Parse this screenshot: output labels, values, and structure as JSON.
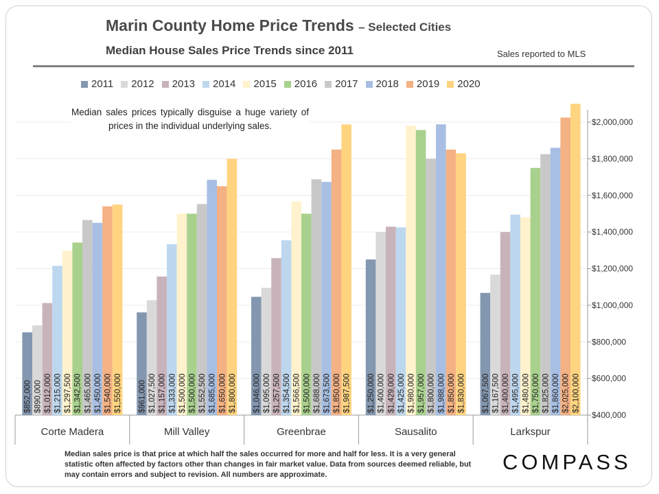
{
  "header": {
    "title": "Marin County Home Price Trends",
    "title_suffix": "– Selected Cities",
    "subtitle": "Median House Sales Price Trends since 2011",
    "source_note": "Sales reported to MLS"
  },
  "annotation": "Median sales prices typically disguise a huge variety of prices in the individual underlying sales.",
  "footnote": "Median sales price is that price at which half the sales occurred for more and half for less. It is a very general statistic often affected by factors other than changes in fair market value. Data from sources deemed reliable, but may contain errors and subject to revision. All numbers are approximate.",
  "logo": "COMPASS",
  "colors": [
    "#8497b0",
    "#d9d9d9",
    "#c9b3bb",
    "#bdd7ee",
    "#fff2cc",
    "#a9d18e",
    "#c8c8c8",
    "#a8bfe3",
    "#f4b183",
    "#ffd480"
  ],
  "chart_data": {
    "type": "bar",
    "categories": [
      "Corte Madera",
      "Mill Valley",
      "Greenbrae",
      "Sausalito",
      "Larkspur"
    ],
    "series": [
      {
        "name": "2011",
        "values": [
          852000,
          961000,
          1046000,
          1250000,
          1067500
        ],
        "labels": [
          "$852,000",
          "$961,000",
          "$1,046,000",
          "$1,250,000",
          "$1,067,500"
        ]
      },
      {
        "name": "2012",
        "values": [
          890000,
          1027500,
          1095000,
          1400000,
          1167500
        ],
        "labels": [
          "$890,000",
          "$1,027,500",
          "$1,095,000",
          "$1,400,000",
          "$1,167,500"
        ]
      },
      {
        "name": "2013",
        "values": [
          1012000,
          1157000,
          1257500,
          1429000,
          1400000
        ],
        "labels": [
          "$1,012,000",
          "$1,157,000",
          "$1,257,500",
          "$1,429,000",
          "$1,400,000"
        ]
      },
      {
        "name": "2014",
        "values": [
          1215000,
          1333000,
          1354500,
          1425000,
          1495000
        ],
        "labels": [
          "$1,215,000",
          "$1,333,000",
          "$1,354,500",
          "$1,425,000",
          "$1,495,000"
        ]
      },
      {
        "name": "2015",
        "values": [
          1297500,
          1500000,
          1566500,
          1980000,
          1480000
        ],
        "labels": [
          "$1,297,500",
          "$1,500,000",
          "$1,566,500",
          "$1,980,000",
          "$1,480,000"
        ]
      },
      {
        "name": "2016",
        "values": [
          1342500,
          1500000,
          1500000,
          1957000,
          1750000
        ],
        "labels": [
          "$1,342,500",
          "$1,500,000",
          "$1,500,000",
          "$1,957,000",
          "$1,750,000"
        ]
      },
      {
        "name": "2017",
        "values": [
          1465000,
          1552500,
          1688000,
          1800000,
          1825000
        ],
        "labels": [
          "$1,465,000",
          "$1,552,500",
          "$1,688,000",
          "$1,800,000",
          "$1,825,000"
        ]
      },
      {
        "name": "2018",
        "values": [
          1450000,
          1685000,
          1673500,
          1988000,
          1860000
        ],
        "labels": [
          "$1,450,000",
          "$1,685,000",
          "$1,673,500",
          "$1,988,000",
          "$1,860,000"
        ]
      },
      {
        "name": "2019",
        "values": [
          1540000,
          1650000,
          1850000,
          1850000,
          2025000
        ],
        "labels": [
          "$1,540,000",
          "$1,650,000",
          "$1,850,000",
          "$1,850,000",
          "$2,025,000"
        ]
      },
      {
        "name": "2020",
        "values": [
          1550000,
          1800000,
          1987500,
          1830000,
          2100000
        ],
        "labels": [
          "$1,550,000",
          "$1,800,000",
          "$1,987,500",
          "$1,830,000",
          "$2,100,000"
        ]
      }
    ],
    "y_ticks": [
      400000,
      600000,
      800000,
      1000000,
      1200000,
      1400000,
      1600000,
      1800000,
      2000000
    ],
    "y_tick_labels": [
      "$400,000",
      "$600,000",
      "$800,000",
      "$1,000,000",
      "$1,200,000",
      "$1,400,000",
      "$1,600,000",
      "$1,800,000",
      "$2,000,000"
    ],
    "ylim": [
      400000,
      2150000
    ],
    "y_axis_side": "right",
    "grid": true,
    "legend_position": "top"
  }
}
